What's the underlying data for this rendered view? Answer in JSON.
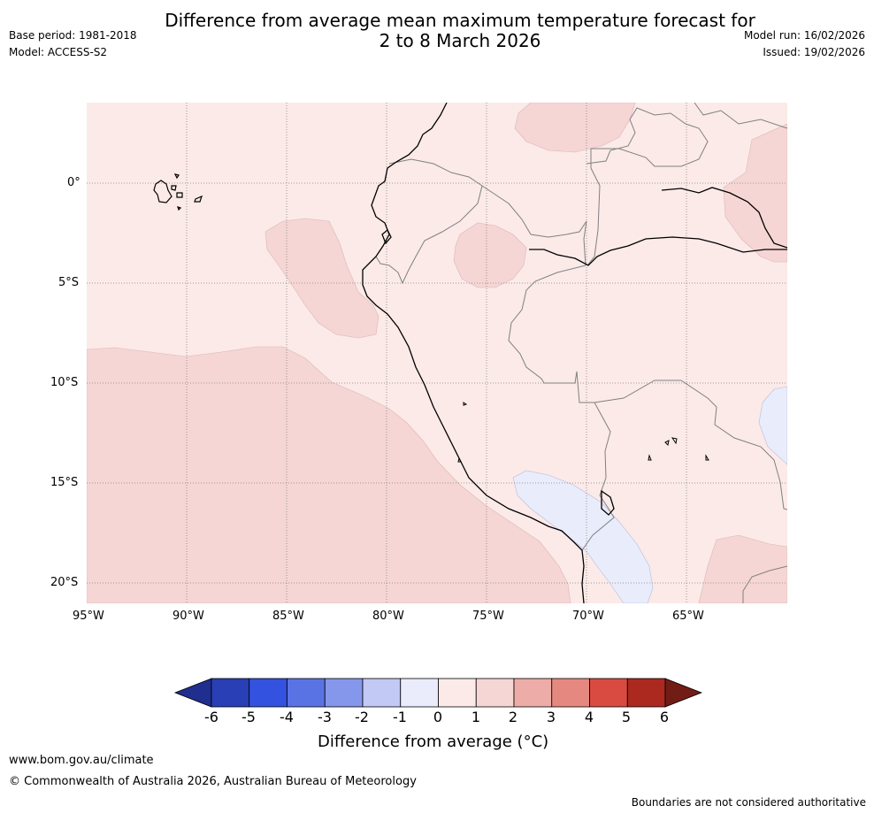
{
  "header": {
    "title_line1": "Difference from average mean maximum temperature forecast for",
    "title_line2": "2 to 8 March 2026",
    "base_period": "Base period: 1981-2018",
    "model": "Model: ACCESS-S2",
    "model_run": "Model run: 16/02/2026",
    "issued": "Issued: 19/02/2026"
  },
  "map": {
    "region": "South America west coast (Peru / Ecuador region)",
    "lat_labels": [
      "0°",
      "5°S",
      "10°S",
      "15°S",
      "20°S"
    ],
    "lon_labels": [
      "95°W",
      "90°W",
      "85°W",
      "80°W",
      "75°W",
      "70°W",
      "65°W"
    ],
    "lat_range": [
      -21,
      4
    ],
    "lon_range": [
      -95,
      -60
    ],
    "colors": {
      "band_0_1": "#fbeae8",
      "band_1_2": "#f5d6d4",
      "band_m1_0": "#e9ecfa",
      "coast": "#000000",
      "border": "#808080",
      "grid": "#808080"
    }
  },
  "colorbar": {
    "tick_labels": [
      "-6",
      "-5",
      "-4",
      "-3",
      "-2",
      "-1",
      "0",
      "1",
      "2",
      "3",
      "4",
      "5",
      "6"
    ],
    "colors": [
      "#1f2e8f",
      "#283fb5",
      "#3352e0",
      "#5a73e4",
      "#8597ea",
      "#c2c9f4",
      "#eaecfb",
      "#fbeae8",
      "#f5d6d4",
      "#edaca7",
      "#e5887f",
      "#d94b40",
      "#ac2920",
      "#721c16"
    ],
    "label": "Difference from average (",
    "label_unit": "°C)"
  },
  "footer": {
    "website": "www.bom.gov.au/climate",
    "copyright": "© Commonwealth of Australia 2026, Australian Bureau of Meteorology",
    "disclaimer": "Boundaries are not considered authoritative"
  }
}
